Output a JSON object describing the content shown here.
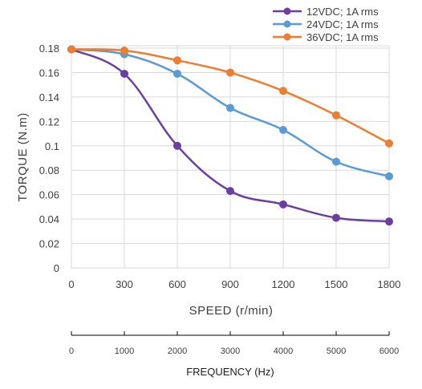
{
  "chart_data": {
    "type": "line",
    "title": "",
    "xlabel": "SPEED (r/min)",
    "ylabel": "TORQUE (N.m)",
    "x": [
      0,
      300,
      600,
      900,
      1200,
      1500,
      1800
    ],
    "x_tick_labels": [
      "0",
      "300",
      "600",
      "900",
      "1200",
      "1500",
      "1800"
    ],
    "y_tick_labels": [
      "0",
      "0.02",
      "0.04",
      "0.06",
      "0.08",
      "0.1",
      "0.12",
      "0.14",
      "0.16",
      "0.18"
    ],
    "ylim": [
      0,
      0.18
    ],
    "xlim": [
      0,
      1800
    ],
    "grid": true,
    "legend_position": "top-right",
    "series": [
      {
        "name": "12VDC; 1A rms",
        "color": "#6B3FA0",
        "values": [
          0.179,
          0.159,
          0.1,
          0.063,
          0.052,
          0.041,
          0.038
        ]
      },
      {
        "name": "24VDC; 1A rms",
        "color": "#5B9BD5",
        "values": [
          0.179,
          0.175,
          0.159,
          0.131,
          0.113,
          0.087,
          0.075
        ]
      },
      {
        "name": "36VDC; 1A rms",
        "color": "#ED7D31",
        "values": [
          0.179,
          0.178,
          0.17,
          0.16,
          0.145,
          0.125,
          0.102
        ]
      }
    ],
    "secondary_axis": {
      "label": "FREQUENCY (Hz)",
      "tick_labels": [
        "0",
        "1000",
        "2000",
        "3000",
        "4000",
        "5000",
        "6000"
      ]
    }
  }
}
